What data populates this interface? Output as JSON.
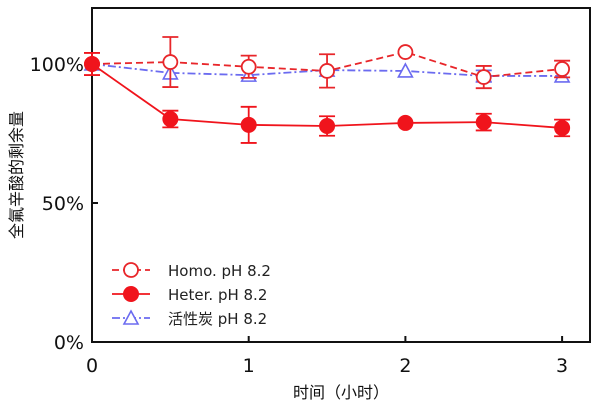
{
  "chart_data": {
    "type": "line",
    "xlabel": "时间（小时）",
    "ylabel": "全氟辛酸的剩余量",
    "xlim": [
      0,
      3.15
    ],
    "ylim": [
      0,
      100
    ],
    "xticks": [
      "0",
      "1",
      "2",
      "3"
    ],
    "yticks": [
      "0%",
      "50%",
      "100%"
    ],
    "grid": false,
    "legend_position": "bottom-left",
    "x": [
      0,
      0.5,
      1,
      1.5,
      2,
      2.5,
      3
    ],
    "series": [
      {
        "name": "Homo. pH 8.2",
        "color": "#e8262a",
        "style": "dashed",
        "marker": "open-circle",
        "values": [
          100,
          100.7,
          99,
          97.5,
          104.3,
          95.3,
          98.2
        ],
        "errors": [
          4,
          9,
          4,
          6,
          0,
          4,
          3
        ]
      },
      {
        "name": "Heter. pH 8.2",
        "color": "#f0141c",
        "style": "solid",
        "marker": "filled-circle",
        "values": [
          100,
          80.2,
          78.1,
          77.7,
          78.8,
          79.1,
          77
        ],
        "errors": [
          4,
          3,
          6.5,
          3.5,
          0,
          3,
          3
        ]
      },
      {
        "name": "活性炭 pH 8.2",
        "color": "#6b6bf0",
        "style": "dashdot",
        "marker": "open-triangle",
        "values": [
          100,
          96.8,
          96,
          97.8,
          97.5,
          95.7,
          95.7
        ],
        "errors": [
          0,
          0,
          0,
          0,
          0,
          2,
          0
        ]
      }
    ]
  }
}
